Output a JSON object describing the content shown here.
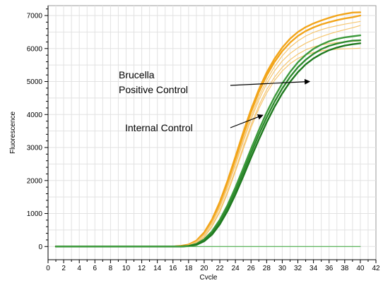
{
  "chart_data": {
    "type": "line",
    "title": "",
    "xlabel": "Cycle",
    "ylabel": "Fluorescence",
    "xlim": [
      0,
      42
    ],
    "ylim": [
      -400,
      7300
    ],
    "x_ticks": [
      0,
      2,
      4,
      6,
      8,
      10,
      12,
      14,
      16,
      18,
      20,
      22,
      24,
      26,
      28,
      30,
      32,
      34,
      36,
      38,
      40,
      42
    ],
    "y_ticks": [
      0,
      1000,
      2000,
      3000,
      4000,
      5000,
      6000,
      7000
    ],
    "grid": true,
    "x": [
      1,
      2,
      3,
      4,
      5,
      6,
      7,
      8,
      9,
      10,
      11,
      12,
      13,
      14,
      15,
      16,
      17,
      18,
      19,
      20,
      21,
      22,
      23,
      24,
      25,
      26,
      27,
      28,
      29,
      30,
      31,
      32,
      33,
      34,
      35,
      36,
      37,
      38,
      39,
      40
    ],
    "series": [
      {
        "color": "#f2a51a",
        "style": "bold",
        "values": [
          0,
          0,
          0,
          0,
          0,
          0,
          0,
          0,
          0,
          0,
          0,
          0,
          0,
          0,
          0,
          0,
          20,
          60,
          180,
          430,
          820,
          1350,
          2000,
          2720,
          3460,
          4150,
          4760,
          5270,
          5690,
          6030,
          6300,
          6500,
          6650,
          6760,
          6850,
          6930,
          7000,
          7050,
          7090,
          7100
        ]
      },
      {
        "color": "#f2a51a",
        "style": "bold",
        "values": [
          0,
          0,
          0,
          0,
          0,
          0,
          0,
          0,
          0,
          0,
          0,
          0,
          0,
          0,
          0,
          0,
          15,
          55,
          170,
          410,
          790,
          1300,
          1950,
          2650,
          3380,
          4070,
          4680,
          5180,
          5590,
          5920,
          6180,
          6380,
          6530,
          6640,
          6730,
          6800,
          6860,
          6910,
          6950,
          7000
        ]
      },
      {
        "color": "#f6c66f",
        "style": "thin",
        "values": [
          0,
          0,
          0,
          0,
          0,
          0,
          0,
          0,
          0,
          0,
          0,
          0,
          0,
          0,
          0,
          0,
          10,
          45,
          150,
          370,
          730,
          1220,
          1850,
          2540,
          3250,
          3930,
          4540,
          5040,
          5450,
          5780,
          6040,
          6230,
          6380,
          6490,
          6570,
          6640,
          6690,
          6740,
          6780,
          6820
        ]
      },
      {
        "color": "#f6c66f",
        "style": "thin",
        "values": [
          0,
          0,
          0,
          0,
          0,
          0,
          0,
          0,
          0,
          0,
          0,
          0,
          0,
          0,
          0,
          0,
          10,
          40,
          140,
          350,
          700,
          1180,
          1790,
          2470,
          3170,
          3840,
          4440,
          4930,
          5320,
          5620,
          5850,
          6020,
          6160,
          6270,
          6360,
          6440,
          6510,
          6570,
          6630,
          6700
        ]
      },
      {
        "color": "#f6c66f",
        "style": "thin",
        "values": [
          0,
          0,
          0,
          0,
          0,
          0,
          0,
          0,
          0,
          0,
          0,
          0,
          0,
          0,
          0,
          0,
          5,
          30,
          110,
          300,
          630,
          1080,
          1670,
          2330,
          3020,
          3680,
          4270,
          4750,
          5130,
          5430,
          5660,
          5830,
          5960,
          6050,
          6110,
          6150,
          6180,
          6200,
          6220,
          6230
        ]
      },
      {
        "color": "#f6c66f",
        "style": "thin",
        "values": [
          0,
          0,
          0,
          0,
          0,
          0,
          0,
          0,
          0,
          0,
          0,
          0,
          0,
          0,
          0,
          0,
          5,
          25,
          100,
          280,
          600,
          1040,
          1620,
          2270,
          2950,
          3600,
          4180,
          4650,
          5030,
          5320,
          5540,
          5700,
          5810,
          5880,
          5930,
          5960,
          5980,
          5990,
          6000,
          6010
        ]
      },
      {
        "color": "#3c9a3c",
        "style": "bold",
        "values": [
          0,
          0,
          0,
          0,
          0,
          0,
          0,
          0,
          0,
          0,
          0,
          0,
          0,
          0,
          0,
          0,
          0,
          20,
          80,
          220,
          460,
          810,
          1260,
          1790,
          2370,
          2960,
          3530,
          4060,
          4530,
          4940,
          5290,
          5580,
          5810,
          5990,
          6120,
          6220,
          6290,
          6340,
          6370,
          6400
        ]
      },
      {
        "color": "#2e8b2e",
        "style": "bold",
        "values": [
          0,
          0,
          0,
          0,
          0,
          0,
          0,
          0,
          0,
          0,
          0,
          0,
          0,
          0,
          0,
          0,
          0,
          15,
          70,
          200,
          420,
          750,
          1180,
          1690,
          2250,
          2830,
          3390,
          3910,
          4380,
          4790,
          5140,
          5430,
          5660,
          5840,
          5980,
          6080,
          6150,
          6200,
          6240,
          6250
        ]
      },
      {
        "color": "#1f7a1f",
        "style": "bold",
        "values": [
          0,
          0,
          0,
          0,
          0,
          0,
          0,
          0,
          0,
          0,
          0,
          0,
          0,
          0,
          0,
          0,
          0,
          10,
          50,
          160,
          360,
          670,
          1080,
          1570,
          2120,
          2690,
          3240,
          3760,
          4230,
          4640,
          4990,
          5280,
          5520,
          5700,
          5840,
          5950,
          6030,
          6090,
          6130,
          6160
        ]
      },
      {
        "color": "#4caf4c",
        "style": "thin",
        "values": [
          0,
          0,
          0,
          0,
          0,
          0,
          0,
          0,
          0,
          0,
          0,
          0,
          0,
          0,
          0,
          0,
          0,
          0,
          0,
          0,
          0,
          0,
          0,
          0,
          0,
          0,
          0,
          0,
          0,
          0,
          0,
          0,
          0,
          0,
          0,
          0,
          0,
          0,
          0,
          0
        ]
      }
    ],
    "annotations": [
      {
        "lines": [
          "Brucella",
          "Positive Control"
        ],
        "arrow_to": [
          33.5,
          5000
        ]
      },
      {
        "lines": [
          "Internal Control"
        ],
        "arrow_to": [
          27.5,
          3980
        ]
      }
    ]
  }
}
